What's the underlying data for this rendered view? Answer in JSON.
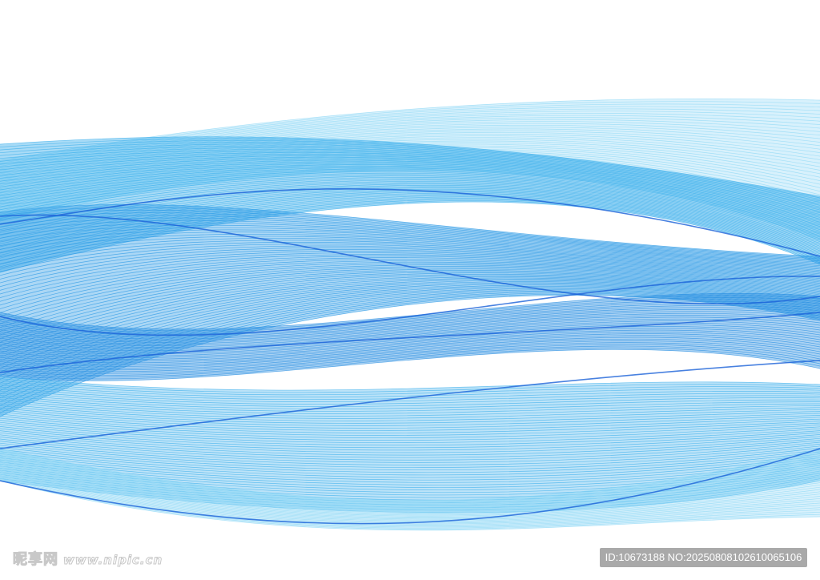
{
  "artwork": {
    "subject": "abstract blue wave lines",
    "colors": {
      "light": "#8fd8f5",
      "mid": "#3fb0ec",
      "deep": "#1a62d8",
      "background": "#ffffff"
    }
  },
  "watermark": {
    "site_name": "昵享网",
    "site_url": "www.nipic.cn",
    "id_label": "ID:10673188 NO:20250808102610065106"
  }
}
